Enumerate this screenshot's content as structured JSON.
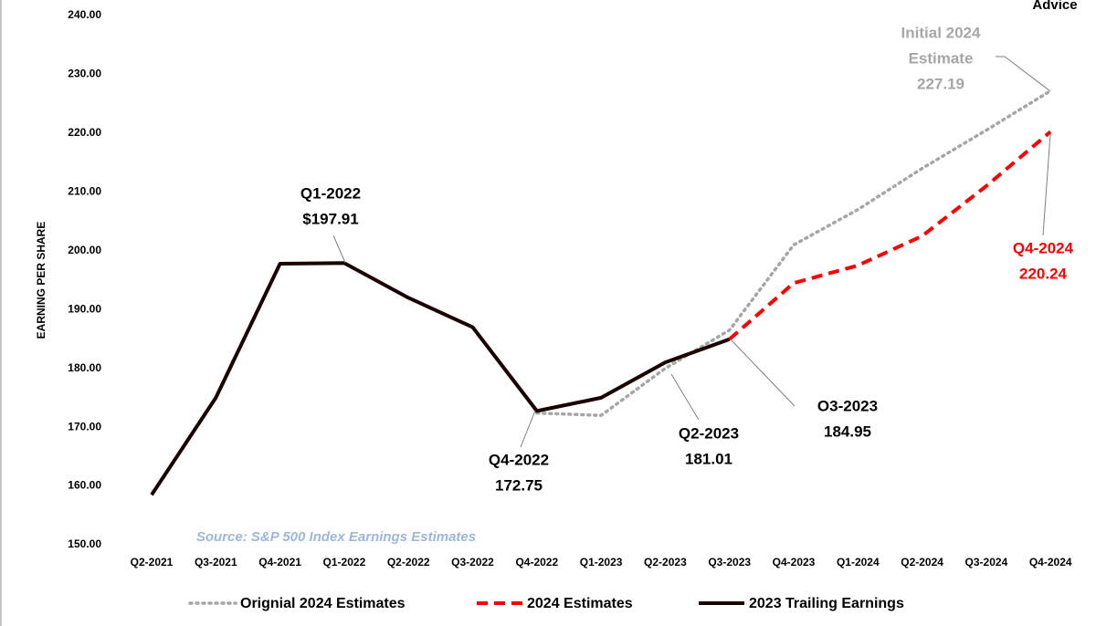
{
  "chart_data": {
    "type": "line",
    "logo_text": "Advice",
    "y_label": "EARNING PER SHARE",
    "source": "Source: S&P 500 Index Earnings Estimates",
    "categories": [
      "Q2-2021",
      "Q3-2021",
      "Q4-2021",
      "Q1-2022",
      "Q2-2022",
      "Q3-2022",
      "Q4-2022",
      "Q1-2023",
      "Q2-2023",
      "Q3-2023",
      "Q4-2023",
      "Q1-2024",
      "Q2-2024",
      "Q3-2024",
      "Q4-2024"
    ],
    "series": [
      {
        "name": "Orignial 2024 Estimates",
        "color": "#a6a6a6",
        "style": "dotted",
        "values": [
          null,
          null,
          null,
          null,
          null,
          null,
          172.4,
          172,
          180,
          186.5,
          201,
          207,
          214,
          220.5,
          227.19
        ]
      },
      {
        "name": "2024 Estimates",
        "color": "#ff0000",
        "style": "dashed",
        "values": [
          null,
          null,
          null,
          null,
          null,
          null,
          null,
          null,
          null,
          184.95,
          194.5,
          197.5,
          202.5,
          211,
          220.24
        ]
      },
      {
        "name": "2023 Trailing Earnings",
        "color": "#1a0000",
        "style": "solid",
        "values": [
          158.5,
          175,
          197.8,
          197.91,
          192,
          187,
          172.75,
          175,
          181.01,
          184.95,
          null,
          null,
          null,
          null,
          null
        ]
      }
    ],
    "ylim": [
      150,
      240
    ],
    "yticks": [
      {
        "value": 150,
        "label": "150.00"
      },
      {
        "value": 160,
        "label": "160.00"
      },
      {
        "value": 170,
        "label": "170.00"
      },
      {
        "value": 180,
        "label": "180.00"
      },
      {
        "value": 190,
        "label": "190.00"
      },
      {
        "value": 200,
        "label": "200.00"
      },
      {
        "value": 210,
        "label": "210.00"
      },
      {
        "value": 220,
        "label": "220.00"
      },
      {
        "value": 230,
        "label": "230.00"
      },
      {
        "value": 240,
        "label": "240.00"
      }
    ],
    "grid": false,
    "legend": "bottom",
    "annotations": [
      {
        "lines": [
          "Q1-2022",
          "$197.91"
        ],
        "color": "#000000"
      },
      {
        "lines": [
          "Q4-2022",
          "172.75"
        ],
        "color": "#000000"
      },
      {
        "lines": [
          "Q2-2023",
          "181.01"
        ],
        "color": "#000000"
      },
      {
        "lines": [
          "O3-2023",
          "184.95"
        ],
        "color": "#000000"
      },
      {
        "lines": [
          "Q4-2024",
          "220.24"
        ],
        "color": "#ff0000"
      },
      {
        "lines": [
          "Initial 2024",
          "Estimate",
          "227.19"
        ],
        "color": "#a6a6a6"
      }
    ]
  }
}
